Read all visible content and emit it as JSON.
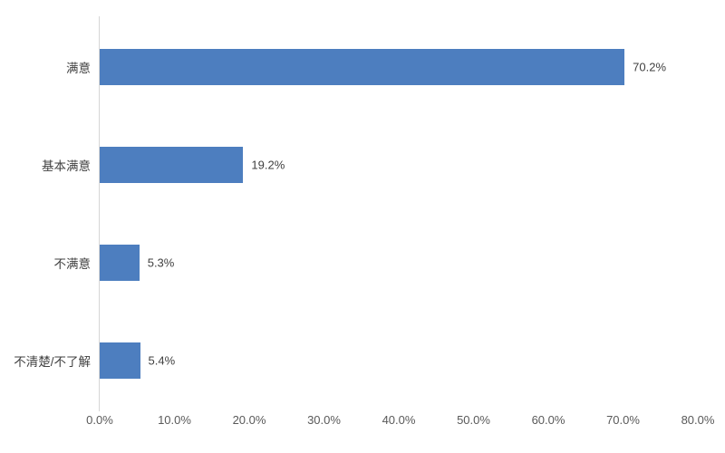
{
  "chart_data": {
    "type": "bar",
    "orientation": "horizontal",
    "title": "",
    "xlabel": "",
    "ylabel": "",
    "categories": [
      "满意",
      "基本满意",
      "不满意",
      "不清楚/不了解"
    ],
    "values": [
      70.2,
      19.2,
      5.3,
      5.4
    ],
    "value_labels": [
      "70.2%",
      "19.2%",
      "5.3%",
      "5.4%"
    ],
    "xlim": [
      0,
      80
    ],
    "x_tick_values": [
      0,
      10,
      20,
      30,
      40,
      50,
      60,
      70,
      80
    ],
    "x_tick_labels": [
      "0.0%",
      "10.0%",
      "20.0%",
      "30.0%",
      "40.0%",
      "50.0%",
      "60.0%",
      "70.0%",
      "80.0%"
    ],
    "grid": false,
    "legend": false,
    "bar_color": "#4d7ebf"
  },
  "colors": {
    "background": "#ffffff",
    "axis_line": "#d6d6d6",
    "tick_label": "#595959",
    "category_label": "#404040",
    "value_label": "#404040"
  }
}
